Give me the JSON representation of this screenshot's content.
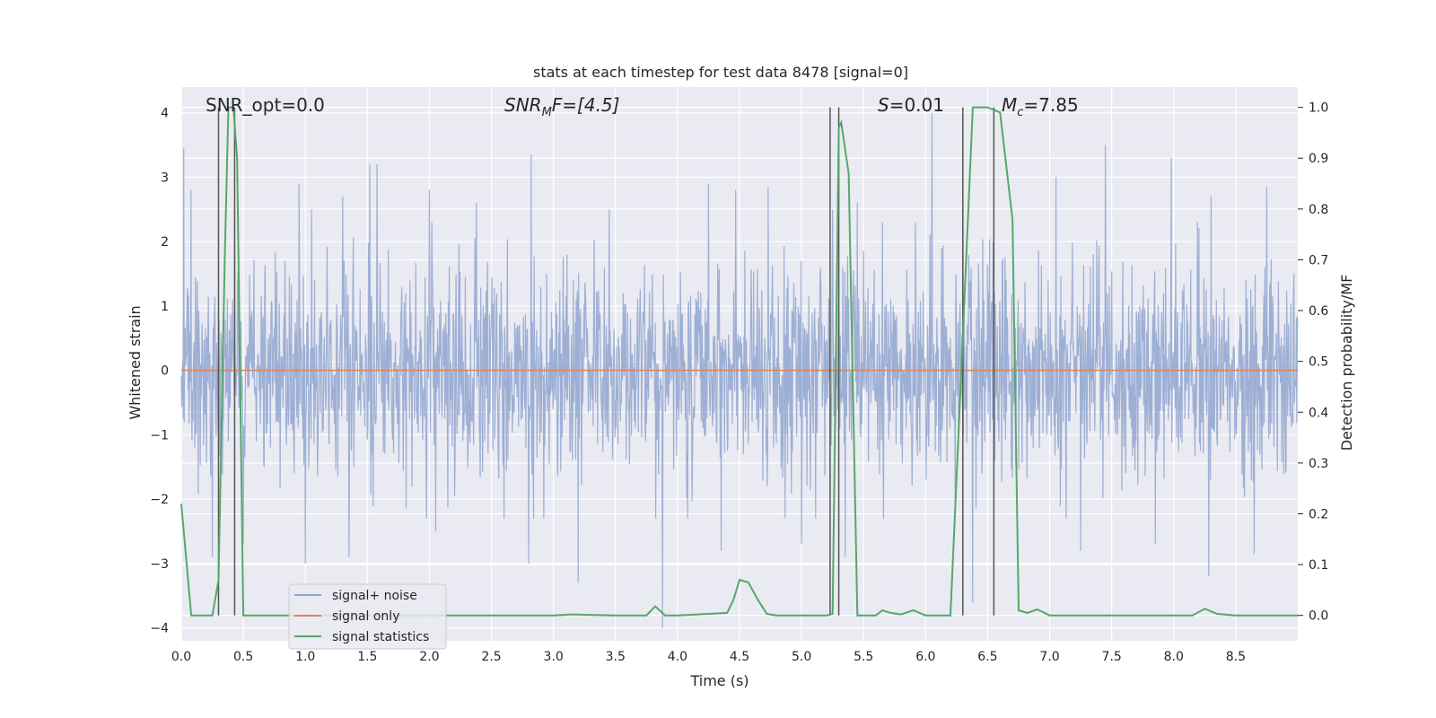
{
  "chart_data": {
    "type": "line",
    "title": "stats at each timestep for test data 8478 [signal=0]",
    "xlabel": "Time (s)",
    "ylabel": "Whitened strain",
    "ylabel_right": "Detection probability/MF",
    "xlim": [
      0.0,
      9.0
    ],
    "ylim": [
      -4.2,
      4.4
    ],
    "ylim_right": [
      -0.05,
      1.04
    ],
    "x_ticks": [
      "0.0",
      "0.5",
      "1.0",
      "1.5",
      "2.0",
      "2.5",
      "3.0",
      "3.5",
      "4.0",
      "4.5",
      "5.0",
      "5.5",
      "6.0",
      "6.5",
      "7.0",
      "7.5",
      "8.0",
      "8.5"
    ],
    "x_tick_values": [
      0,
      0.5,
      1,
      1.5,
      2,
      2.5,
      3,
      3.5,
      4,
      4.5,
      5,
      5.5,
      6,
      6.5,
      7,
      7.5,
      8,
      8.5
    ],
    "y_ticks": [
      "−4",
      "−3",
      "−2",
      "−1",
      "0",
      "1",
      "2",
      "3",
      "4"
    ],
    "y_tick_values": [
      -4,
      -3,
      -2,
      -1,
      0,
      1,
      2,
      3,
      4
    ],
    "y_ticks_right": [
      "0.0",
      "0.1",
      "0.2",
      "0.3",
      "0.4",
      "0.5",
      "0.6",
      "0.7",
      "0.8",
      "0.9",
      "1.0"
    ],
    "y_tick_values_right": [
      0,
      0.1,
      0.2,
      0.3,
      0.4,
      0.5,
      0.6,
      0.7,
      0.8,
      0.9,
      1.0
    ],
    "grid": true,
    "annotations": {
      "snr_opt": "SNR_opt=0.0",
      "snr_mf_main": "SNR",
      "snr_mf_sub": "M",
      "snr_mf_rest": "F=[4.5]",
      "s_main": "S",
      "s_rest": "=0.01",
      "mc_main": "M",
      "mc_sub": "c",
      "mc_rest": "=7.85"
    },
    "legend": {
      "position": "lower-left",
      "entries": [
        "signal+ noise",
        "signal only",
        "signal statistics"
      ]
    },
    "series": [
      {
        "name": "signal+ noise",
        "color": "#8fa4cf",
        "kind": "noise",
        "sample_rate_hz": 256,
        "duration_s": 9.0,
        "spike_peaks": [
          {
            "x": 0.02,
            "y": 3.45
          },
          {
            "x": 0.08,
            "y": 2.8
          },
          {
            "x": 0.43,
            "y": 2.6
          },
          {
            "x": 0.95,
            "y": 2.9
          },
          {
            "x": 1.05,
            "y": 2.5
          },
          {
            "x": 1.3,
            "y": 2.7
          },
          {
            "x": 1.52,
            "y": 3.2
          },
          {
            "x": 1.58,
            "y": 3.2
          },
          {
            "x": 2.0,
            "y": 2.8
          },
          {
            "x": 2.38,
            "y": 2.6
          },
          {
            "x": 2.82,
            "y": 3.35
          },
          {
            "x": 3.45,
            "y": 2.5
          },
          {
            "x": 4.25,
            "y": 2.9
          },
          {
            "x": 4.47,
            "y": 2.8
          },
          {
            "x": 4.73,
            "y": 2.85
          },
          {
            "x": 5.25,
            "y": 2.5
          },
          {
            "x": 5.45,
            "y": 2.6
          },
          {
            "x": 6.05,
            "y": 4.0
          },
          {
            "x": 6.3,
            "y": 3.0
          },
          {
            "x": 7.05,
            "y": 3.0
          },
          {
            "x": 7.45,
            "y": 3.5
          },
          {
            "x": 7.98,
            "y": 3.3
          },
          {
            "x": 8.3,
            "y": 2.7
          },
          {
            "x": 8.75,
            "y": 2.85
          }
        ],
        "spike_troughs": [
          {
            "x": 0.25,
            "y": -2.9
          },
          {
            "x": 0.5,
            "y": -2.7
          },
          {
            "x": 1.0,
            "y": -3.0
          },
          {
            "x": 1.35,
            "y": -2.9
          },
          {
            "x": 2.05,
            "y": -2.5
          },
          {
            "x": 2.8,
            "y": -3.0
          },
          {
            "x": 3.2,
            "y": -3.3
          },
          {
            "x": 3.88,
            "y": -4.0
          },
          {
            "x": 4.35,
            "y": -2.8
          },
          {
            "x": 5.0,
            "y": -2.7
          },
          {
            "x": 5.35,
            "y": -2.9
          },
          {
            "x": 6.38,
            "y": -3.6
          },
          {
            "x": 7.25,
            "y": -2.8
          },
          {
            "x": 7.85,
            "y": -2.7
          },
          {
            "x": 8.28,
            "y": -3.2
          },
          {
            "x": 8.65,
            "y": -2.85
          }
        ]
      },
      {
        "name": "signal only",
        "color": "#dd8452",
        "x": [
          0,
          9
        ],
        "y": [
          0,
          0
        ]
      },
      {
        "name": "signal statistics",
        "color": "#55a868",
        "axis": "right",
        "x": [
          0.0,
          0.08,
          0.12,
          0.2,
          0.25,
          0.3,
          0.35,
          0.38,
          0.42,
          0.45,
          0.5,
          0.55,
          0.6,
          1.0,
          1.5,
          2.0,
          2.5,
          3.0,
          3.15,
          3.5,
          3.75,
          3.82,
          3.9,
          4.0,
          4.4,
          4.45,
          4.5,
          4.57,
          4.65,
          4.72,
          4.8,
          5.0,
          5.2,
          5.25,
          5.3,
          5.32,
          5.38,
          5.45,
          5.5,
          5.6,
          5.65,
          5.72,
          5.8,
          5.9,
          6.0,
          6.1,
          6.2,
          6.3,
          6.38,
          6.45,
          6.5,
          6.6,
          6.7,
          6.75,
          6.82,
          6.9,
          7.0,
          7.5,
          8.0,
          8.15,
          8.25,
          8.35,
          8.5,
          9.0
        ],
        "y": [
          0.22,
          0.0,
          0.0,
          0.0,
          0.0,
          0.07,
          0.7,
          1.0,
          1.0,
          0.9,
          0.0,
          0.0,
          0.0,
          0.0,
          0.0,
          0.0,
          0.0,
          0.0,
          0.002,
          0.0,
          0.0,
          0.018,
          0.0,
          0.0,
          0.005,
          0.03,
          0.07,
          0.065,
          0.03,
          0.003,
          0.0,
          0.0,
          0.0,
          0.003,
          0.96,
          0.97,
          0.87,
          0.0,
          0.0,
          0.0,
          0.01,
          0.005,
          0.002,
          0.01,
          0.0,
          0.0,
          0.0,
          0.55,
          1.0,
          1.0,
          1.0,
          0.99,
          0.78,
          0.01,
          0.005,
          0.012,
          0.0,
          0.0,
          0.0,
          0.0,
          0.013,
          0.003,
          0.0,
          0.0
        ]
      }
    ],
    "vertical_lines_x": [
      0.3,
      0.43,
      5.23,
      5.3,
      6.3,
      6.55
    ]
  }
}
